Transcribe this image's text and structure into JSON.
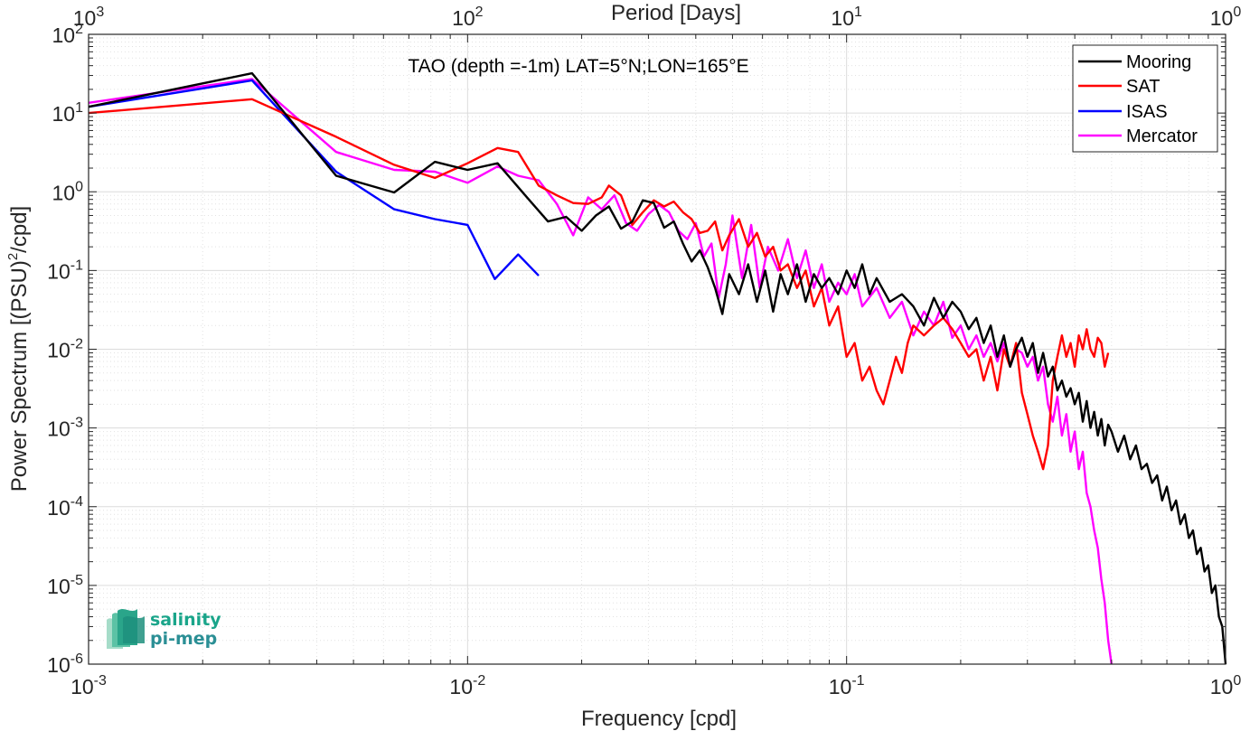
{
  "chart_data": {
    "type": "line",
    "title": "TAO (depth =-1m) LAT=5°N;LON=165°E",
    "xlabel": "Frequency [cpd]",
    "ylabel": "Power Spectrum [(PSU)",
    "ylabel_sup": "2",
    "ylabel_tail": "/cpd]",
    "x2label": "Period [Days]",
    "xscale": "log",
    "yscale": "log",
    "xlim": [
      0.001,
      1
    ],
    "ylim": [
      1e-06,
      100
    ],
    "grid": true,
    "legend_position": "top-right",
    "x_ticks": [
      {
        "value": 0.001,
        "base": "10",
        "exp": "-3"
      },
      {
        "value": 0.01,
        "base": "10",
        "exp": "-2"
      },
      {
        "value": 0.1,
        "base": "10",
        "exp": "-1"
      },
      {
        "value": 1,
        "base": "10",
        "exp": "0"
      }
    ],
    "x2_ticks": [
      {
        "value": 0.001,
        "base": "10",
        "exp": "3"
      },
      {
        "value": 0.01,
        "base": "10",
        "exp": "2"
      },
      {
        "value": 0.1,
        "base": "10",
        "exp": "1"
      },
      {
        "value": 1,
        "base": "10",
        "exp": "0"
      }
    ],
    "y_ticks": [
      {
        "value": 100,
        "base": "10",
        "exp": "2"
      },
      {
        "value": 10,
        "base": "10",
        "exp": "1"
      },
      {
        "value": 1,
        "base": "10",
        "exp": "0"
      },
      {
        "value": 0.1,
        "base": "10",
        "exp": "-1"
      },
      {
        "value": 0.01,
        "base": "10",
        "exp": "-2"
      },
      {
        "value": 0.001,
        "base": "10",
        "exp": "-3"
      },
      {
        "value": 0.0001,
        "base": "10",
        "exp": "-4"
      },
      {
        "value": 1e-05,
        "base": "10",
        "exp": "-5"
      },
      {
        "value": 1e-06,
        "base": "10",
        "exp": "-6"
      }
    ],
    "series": [
      {
        "name": "Mooring",
        "color": "#000000",
        "points": [
          [
            0.001,
            12.0
          ],
          [
            0.0027,
            32.0
          ],
          [
            0.0045,
            1.6
          ],
          [
            0.0064,
            0.98
          ],
          [
            0.0082,
            2.4
          ],
          [
            0.01,
            1.9
          ],
          [
            0.012,
            2.3
          ],
          [
            0.0145,
            0.8
          ],
          [
            0.0163,
            0.42
          ],
          [
            0.0182,
            0.48
          ],
          [
            0.02,
            0.32
          ],
          [
            0.0218,
            0.5
          ],
          [
            0.0236,
            0.65
          ],
          [
            0.0254,
            0.34
          ],
          [
            0.0272,
            0.42
          ],
          [
            0.029,
            0.78
          ],
          [
            0.031,
            0.72
          ],
          [
            0.033,
            0.35
          ],
          [
            0.035,
            0.42
          ],
          [
            0.037,
            0.22
          ],
          [
            0.039,
            0.13
          ],
          [
            0.041,
            0.18
          ],
          [
            0.043,
            0.11
          ],
          [
            0.045,
            0.06
          ],
          [
            0.047,
            0.028
          ],
          [
            0.049,
            0.09
          ],
          [
            0.052,
            0.05
          ],
          [
            0.055,
            0.12
          ],
          [
            0.058,
            0.04
          ],
          [
            0.061,
            0.1
          ],
          [
            0.064,
            0.03
          ],
          [
            0.067,
            0.09
          ],
          [
            0.07,
            0.05
          ],
          [
            0.074,
            0.12
          ],
          [
            0.078,
            0.04
          ],
          [
            0.082,
            0.09
          ],
          [
            0.086,
            0.06
          ],
          [
            0.09,
            0.08
          ],
          [
            0.095,
            0.05
          ],
          [
            0.1,
            0.1
          ],
          [
            0.105,
            0.06
          ],
          [
            0.11,
            0.12
          ],
          [
            0.115,
            0.05
          ],
          [
            0.12,
            0.08
          ],
          [
            0.13,
            0.04
          ],
          [
            0.14,
            0.05
          ],
          [
            0.15,
            0.035
          ],
          [
            0.16,
            0.02
          ],
          [
            0.17,
            0.045
          ],
          [
            0.18,
            0.025
          ],
          [
            0.19,
            0.04
          ],
          [
            0.2,
            0.03
          ],
          [
            0.21,
            0.018
          ],
          [
            0.22,
            0.025
          ],
          [
            0.23,
            0.012
          ],
          [
            0.24,
            0.02
          ],
          [
            0.25,
            0.008
          ],
          [
            0.26,
            0.015
          ],
          [
            0.27,
            0.006
          ],
          [
            0.28,
            0.01
          ],
          [
            0.29,
            0.014
          ],
          [
            0.3,
            0.008
          ],
          [
            0.31,
            0.012
          ],
          [
            0.32,
            0.005
          ],
          [
            0.33,
            0.009
          ],
          [
            0.34,
            0.0045
          ],
          [
            0.35,
            0.006
          ],
          [
            0.36,
            0.003
          ],
          [
            0.37,
            0.004
          ],
          [
            0.38,
            0.0025
          ],
          [
            0.39,
            0.0032
          ],
          [
            0.4,
            0.002
          ],
          [
            0.41,
            0.0028
          ],
          [
            0.42,
            0.0012
          ],
          [
            0.43,
            0.0022
          ],
          [
            0.44,
            0.001
          ],
          [
            0.45,
            0.0016
          ],
          [
            0.46,
            0.0008
          ],
          [
            0.47,
            0.0013
          ],
          [
            0.48,
            0.0006
          ],
          [
            0.49,
            0.0011
          ],
          [
            0.5,
            0.0009
          ],
          [
            0.52,
            0.0005
          ],
          [
            0.54,
            0.0008
          ],
          [
            0.56,
            0.0004
          ],
          [
            0.58,
            0.0006
          ],
          [
            0.6,
            0.0003
          ],
          [
            0.62,
            0.00035
          ],
          [
            0.64,
            0.0002
          ],
          [
            0.66,
            0.00025
          ],
          [
            0.68,
            0.00012
          ],
          [
            0.7,
            0.00018
          ],
          [
            0.72,
            9e-05
          ],
          [
            0.74,
            0.00012
          ],
          [
            0.76,
            6e-05
          ],
          [
            0.78,
            8e-05
          ],
          [
            0.8,
            4e-05
          ],
          [
            0.82,
            5e-05
          ],
          [
            0.84,
            2.5e-05
          ],
          [
            0.86,
            3e-05
          ],
          [
            0.88,
            1.5e-05
          ],
          [
            0.9,
            1.8e-05
          ],
          [
            0.92,
            8e-06
          ],
          [
            0.94,
            1e-05
          ],
          [
            0.96,
            4e-06
          ],
          [
            0.98,
            3e-06
          ],
          [
            1.0,
            1e-06
          ]
        ]
      },
      {
        "name": "SAT",
        "color": "#ff0000",
        "points": [
          [
            0.001,
            10.0
          ],
          [
            0.0027,
            15.0
          ],
          [
            0.0045,
            5.0
          ],
          [
            0.0064,
            2.2
          ],
          [
            0.0082,
            1.5
          ],
          [
            0.01,
            2.3
          ],
          [
            0.012,
            3.6
          ],
          [
            0.0136,
            3.2
          ],
          [
            0.0154,
            1.2
          ],
          [
            0.0172,
            0.9
          ],
          [
            0.019,
            0.72
          ],
          [
            0.0208,
            0.7
          ],
          [
            0.0226,
            0.85
          ],
          [
            0.0236,
            1.2
          ],
          [
            0.0254,
            0.9
          ],
          [
            0.0272,
            0.38
          ],
          [
            0.029,
            0.55
          ],
          [
            0.031,
            0.78
          ],
          [
            0.033,
            0.65
          ],
          [
            0.035,
            0.75
          ],
          [
            0.037,
            0.55
          ],
          [
            0.039,
            0.45
          ],
          [
            0.041,
            0.3
          ],
          [
            0.043,
            0.32
          ],
          [
            0.045,
            0.42
          ],
          [
            0.047,
            0.18
          ],
          [
            0.049,
            0.28
          ],
          [
            0.052,
            0.45
          ],
          [
            0.055,
            0.2
          ],
          [
            0.058,
            0.3
          ],
          [
            0.061,
            0.15
          ],
          [
            0.064,
            0.2
          ],
          [
            0.067,
            0.1
          ],
          [
            0.07,
            0.12
          ],
          [
            0.074,
            0.06
          ],
          [
            0.078,
            0.1
          ],
          [
            0.082,
            0.035
          ],
          [
            0.086,
            0.06
          ],
          [
            0.09,
            0.02
          ],
          [
            0.095,
            0.035
          ],
          [
            0.1,
            0.008
          ],
          [
            0.105,
            0.012
          ],
          [
            0.11,
            0.004
          ],
          [
            0.115,
            0.006
          ],
          [
            0.12,
            0.003
          ],
          [
            0.125,
            0.002
          ],
          [
            0.13,
            0.004
          ],
          [
            0.135,
            0.008
          ],
          [
            0.14,
            0.005
          ],
          [
            0.145,
            0.012
          ],
          [
            0.15,
            0.02
          ],
          [
            0.16,
            0.015
          ],
          [
            0.17,
            0.02
          ],
          [
            0.18,
            0.025
          ],
          [
            0.19,
            0.018
          ],
          [
            0.2,
            0.012
          ],
          [
            0.21,
            0.008
          ],
          [
            0.22,
            0.01
          ],
          [
            0.23,
            0.004
          ],
          [
            0.24,
            0.008
          ],
          [
            0.25,
            0.003
          ],
          [
            0.26,
            0.01
          ],
          [
            0.27,
            0.006
          ],
          [
            0.28,
            0.012
          ],
          [
            0.29,
            0.0028
          ],
          [
            0.3,
            0.0015
          ],
          [
            0.31,
            0.0008
          ],
          [
            0.32,
            0.0005
          ],
          [
            0.33,
            0.0003
          ],
          [
            0.34,
            0.0006
          ],
          [
            0.35,
            0.004
          ],
          [
            0.36,
            0.008
          ],
          [
            0.37,
            0.015
          ],
          [
            0.38,
            0.008
          ],
          [
            0.39,
            0.012
          ],
          [
            0.4,
            0.006
          ],
          [
            0.41,
            0.015
          ],
          [
            0.42,
            0.01
          ],
          [
            0.43,
            0.018
          ],
          [
            0.44,
            0.01
          ],
          [
            0.45,
            0.008
          ],
          [
            0.46,
            0.014
          ],
          [
            0.47,
            0.012
          ],
          [
            0.48,
            0.006
          ],
          [
            0.49,
            0.009
          ]
        ]
      },
      {
        "name": "ISAS",
        "color": "#0000ff",
        "points": [
          [
            0.001,
            12.0
          ],
          [
            0.0027,
            26.0
          ],
          [
            0.0045,
            1.8
          ],
          [
            0.0064,
            0.6
          ],
          [
            0.0082,
            0.45
          ],
          [
            0.01,
            0.38
          ],
          [
            0.0118,
            0.078
          ],
          [
            0.0136,
            0.16
          ],
          [
            0.0154,
            0.086
          ]
        ]
      },
      {
        "name": "Mercator",
        "color": "#ff00ff",
        "points": [
          [
            0.001,
            13.5
          ],
          [
            0.0027,
            27.0
          ],
          [
            0.0045,
            3.2
          ],
          [
            0.0064,
            1.9
          ],
          [
            0.0082,
            1.8
          ],
          [
            0.01,
            1.3
          ],
          [
            0.012,
            2.1
          ],
          [
            0.0136,
            1.6
          ],
          [
            0.0154,
            1.4
          ],
          [
            0.0172,
            0.7
          ],
          [
            0.019,
            0.28
          ],
          [
            0.0208,
            0.85
          ],
          [
            0.0226,
            0.6
          ],
          [
            0.0244,
            0.9
          ],
          [
            0.0262,
            0.4
          ],
          [
            0.028,
            0.32
          ],
          [
            0.03,
            0.52
          ],
          [
            0.032,
            0.68
          ],
          [
            0.034,
            0.55
          ],
          [
            0.036,
            0.32
          ],
          [
            0.038,
            0.25
          ],
          [
            0.04,
            0.4
          ],
          [
            0.042,
            0.15
          ],
          [
            0.044,
            0.22
          ],
          [
            0.046,
            0.045
          ],
          [
            0.048,
            0.12
          ],
          [
            0.05,
            0.5
          ],
          [
            0.053,
            0.08
          ],
          [
            0.056,
            0.38
          ],
          [
            0.059,
            0.06
          ],
          [
            0.062,
            0.2
          ],
          [
            0.066,
            0.1
          ],
          [
            0.07,
            0.25
          ],
          [
            0.074,
            0.08
          ],
          [
            0.078,
            0.18
          ],
          [
            0.082,
            0.06
          ],
          [
            0.086,
            0.12
          ],
          [
            0.09,
            0.04
          ],
          [
            0.095,
            0.07
          ],
          [
            0.1,
            0.05
          ],
          [
            0.105,
            0.09
          ],
          [
            0.11,
            0.035
          ],
          [
            0.12,
            0.06
          ],
          [
            0.13,
            0.025
          ],
          [
            0.14,
            0.04
          ],
          [
            0.15,
            0.015
          ],
          [
            0.16,
            0.03
          ],
          [
            0.17,
            0.02
          ],
          [
            0.18,
            0.04
          ],
          [
            0.19,
            0.014
          ],
          [
            0.2,
            0.02
          ],
          [
            0.21,
            0.01
          ],
          [
            0.22,
            0.015
          ],
          [
            0.23,
            0.008
          ],
          [
            0.24,
            0.012
          ],
          [
            0.25,
            0.007
          ],
          [
            0.26,
            0.012
          ],
          [
            0.27,
            0.006
          ],
          [
            0.28,
            0.01
          ],
          [
            0.29,
            0.009
          ],
          [
            0.3,
            0.006
          ],
          [
            0.31,
            0.008
          ],
          [
            0.32,
            0.004
          ],
          [
            0.33,
            0.006
          ],
          [
            0.34,
            0.002
          ],
          [
            0.35,
            0.0012
          ],
          [
            0.36,
            0.0025
          ],
          [
            0.37,
            0.0008
          ],
          [
            0.38,
            0.0015
          ],
          [
            0.39,
            0.0005
          ],
          [
            0.4,
            0.0009
          ],
          [
            0.41,
            0.0003
          ],
          [
            0.42,
            0.0005
          ],
          [
            0.43,
            0.00015
          ],
          [
            0.44,
            0.0001
          ],
          [
            0.45,
            5e-05
          ],
          [
            0.46,
            3e-05
          ],
          [
            0.47,
            1.2e-05
          ],
          [
            0.48,
            6e-06
          ],
          [
            0.49,
            2e-06
          ],
          [
            0.5,
            1e-06
          ]
        ]
      }
    ]
  },
  "logo": {
    "line1": "salinity",
    "line2": "pi-mep",
    "line1_color": "#1aa58a",
    "line2_color": "#2b8f95"
  }
}
